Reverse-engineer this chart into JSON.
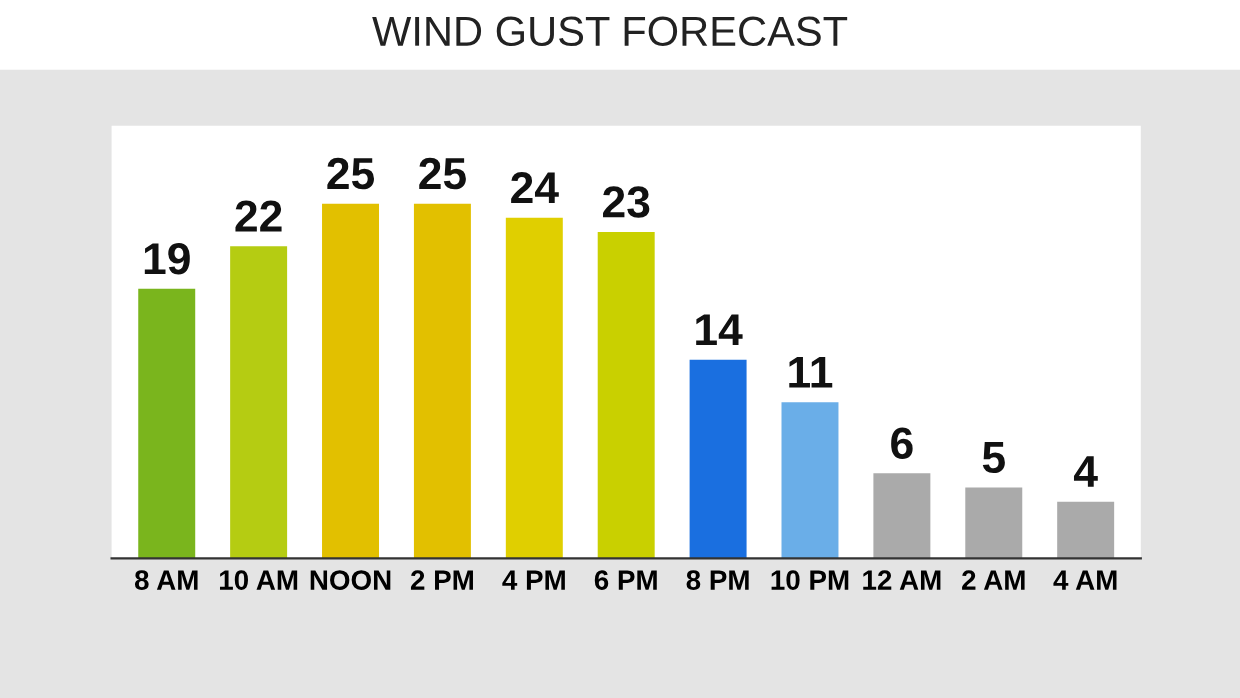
{
  "chart_data": {
    "type": "bar",
    "title": "WIND GUST FORECAST",
    "categories": [
      "8 AM",
      "10 AM",
      "NOON",
      "2 PM",
      "4 PM",
      "6 PM",
      "8 PM",
      "10 PM",
      "12 AM",
      "2 AM",
      "4 AM"
    ],
    "values": [
      19,
      22,
      25,
      25,
      24,
      23,
      14,
      11,
      6,
      5,
      4
    ],
    "colors": [
      "#7ab51d",
      "#b5cc12",
      "#e2c000",
      "#e2c000",
      "#e0cf00",
      "#c9d000",
      "#1a6fe0",
      "#6aaee8",
      "#aaaaaa",
      "#aaaaaa",
      "#aaaaaa"
    ],
    "data_labels": true,
    "grid": false,
    "legend": false
  }
}
